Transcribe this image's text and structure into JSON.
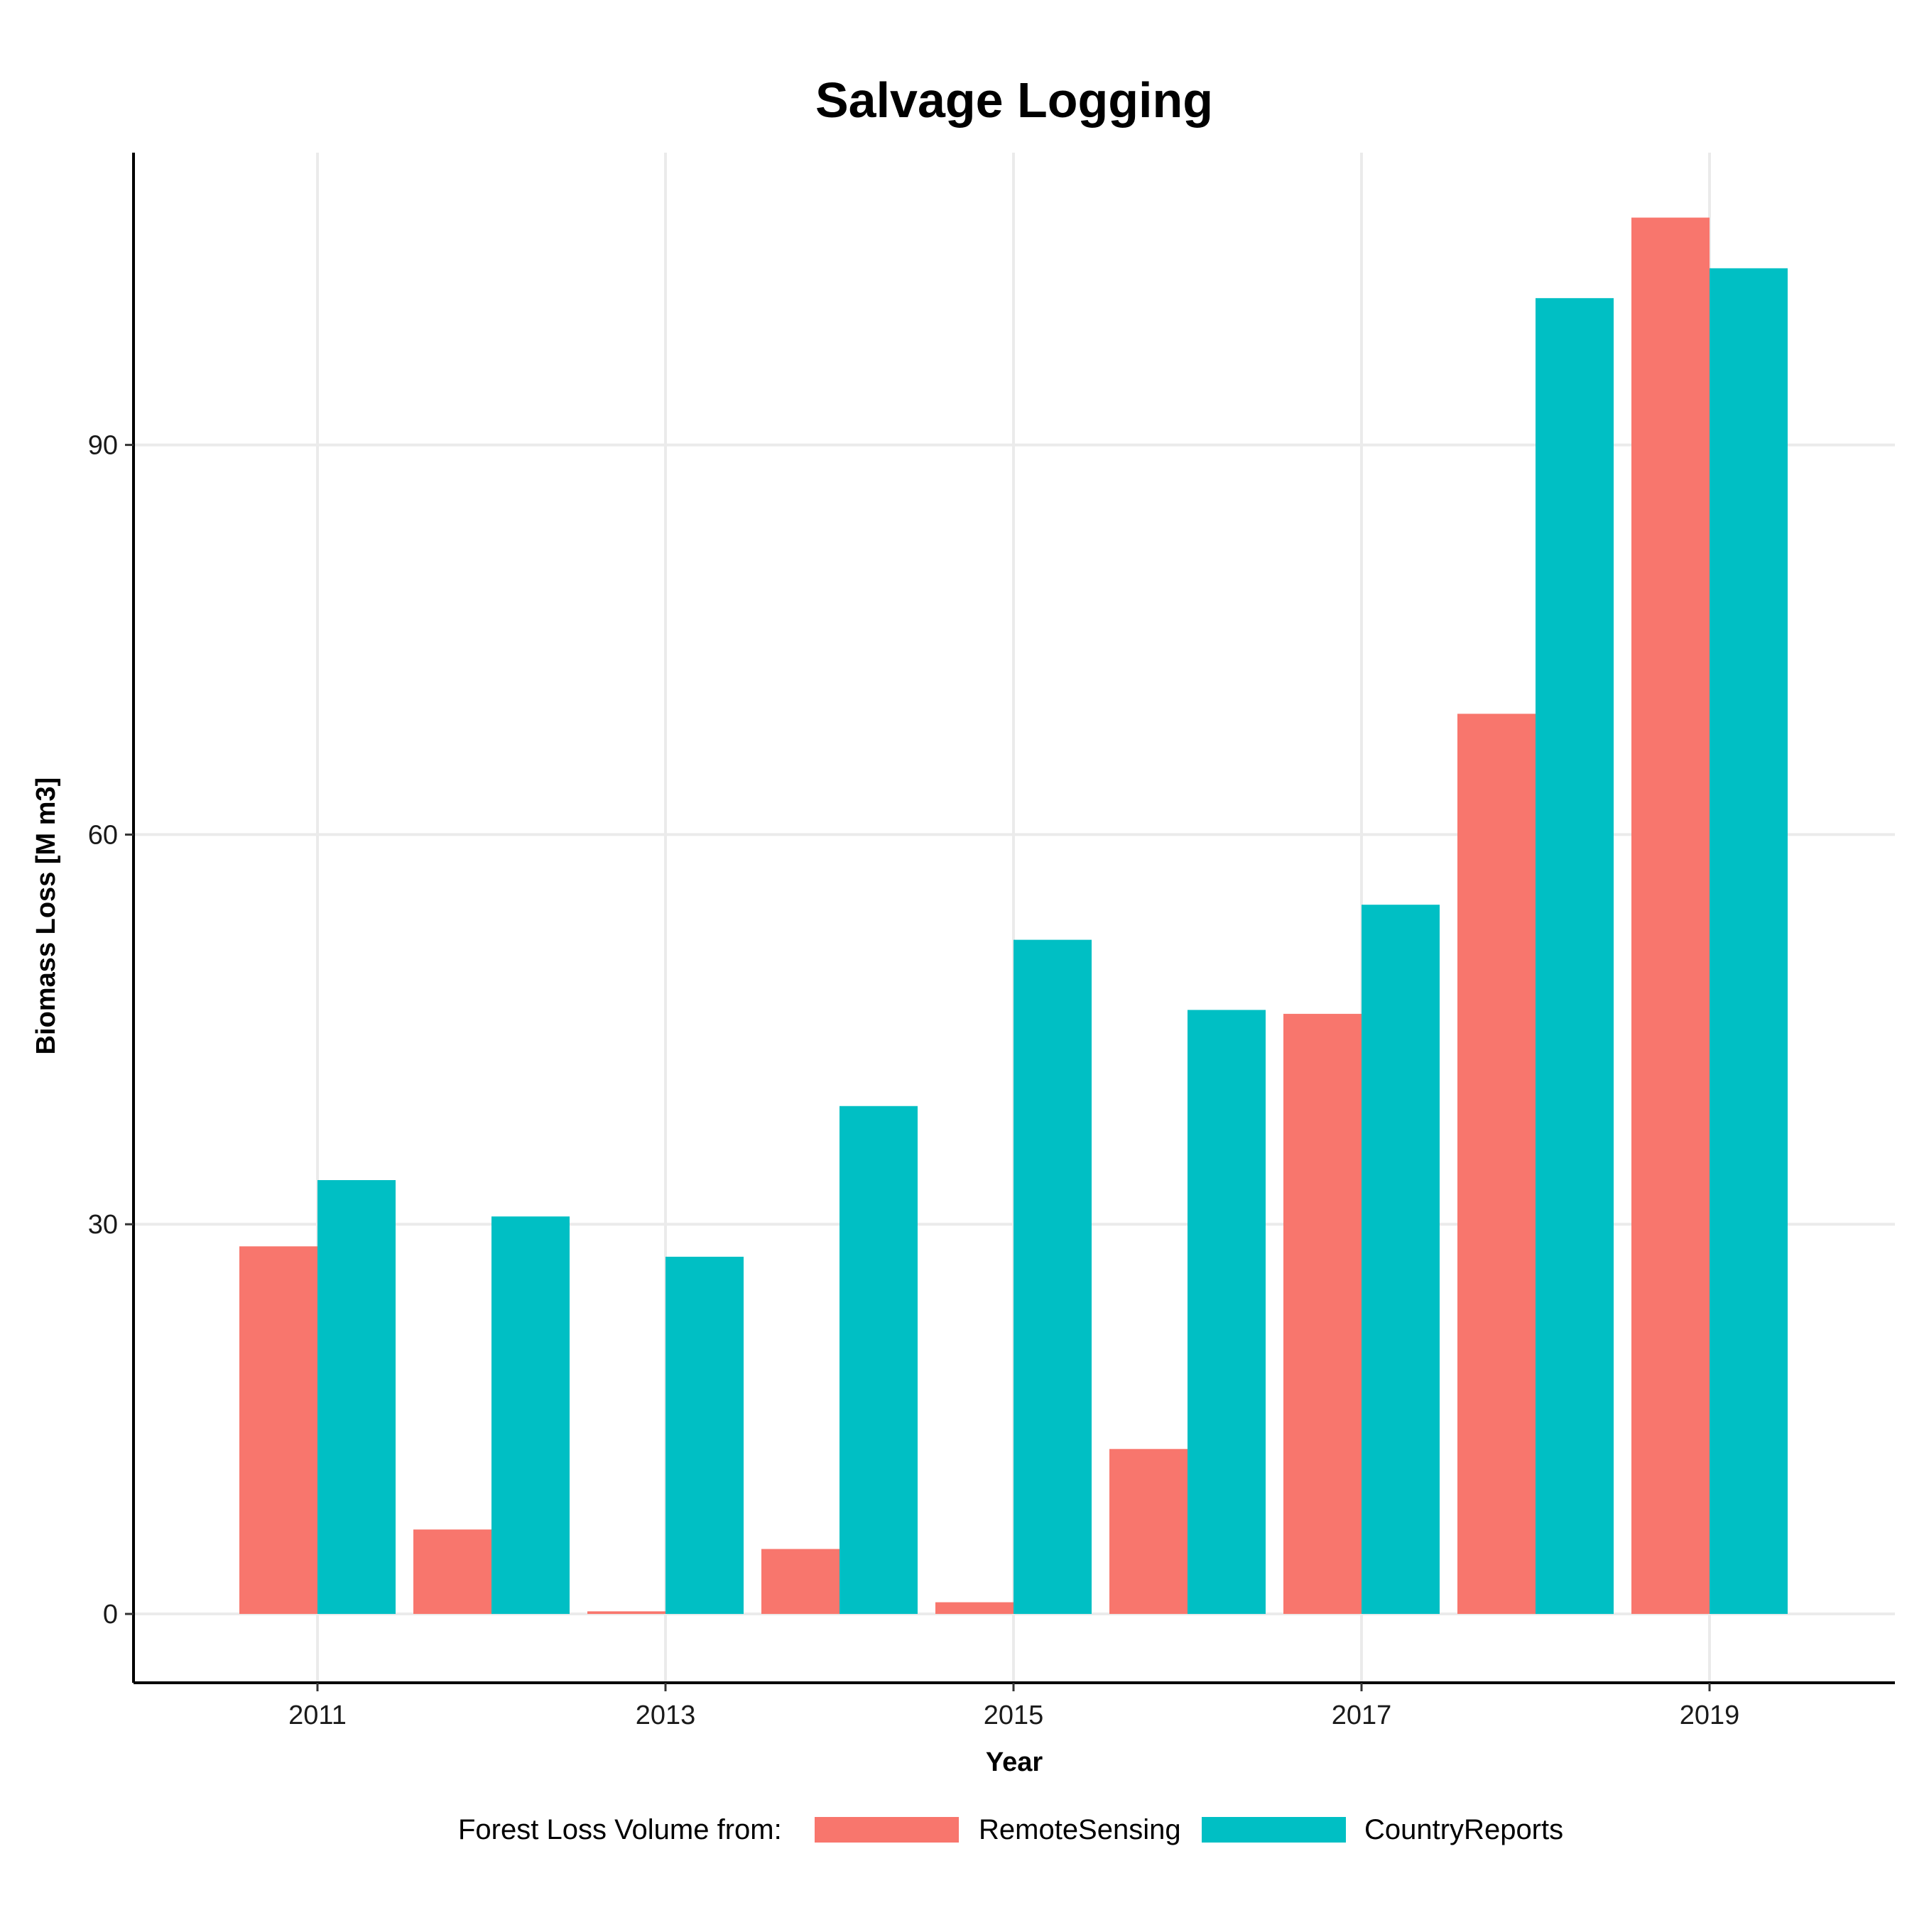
{
  "colors": {
    "RemoteSensing": "#F8766D",
    "CountryReports": "#00BFC4",
    "grid": "#EBEBEB",
    "axis": "#000000"
  },
  "chart_data": {
    "type": "bar",
    "title": "Salvage Logging",
    "xlabel": "Year",
    "ylabel": "Biomass Loss [M m3]",
    "categories": [
      "2011",
      "2012",
      "2013",
      "2014",
      "2015",
      "2016",
      "2017",
      "2018",
      "2019"
    ],
    "x_tick_labels": [
      "2011",
      "2013",
      "2015",
      "2017",
      "2019"
    ],
    "y_tick_labels": [
      "0",
      "30",
      "60",
      "90"
    ],
    "y_ticks": [
      0,
      30,
      60,
      90
    ],
    "ylim": [
      -5.3,
      112.5
    ],
    "grid": true,
    "legend_title": "Forest Loss Volume from:",
    "legend_position": "bottom",
    "series": [
      {
        "name": "RemoteSensing",
        "color": "#F8766D",
        "values": [
          28.3,
          6.5,
          0.2,
          5.0,
          0.9,
          12.7,
          46.2,
          69.3,
          107.5
        ]
      },
      {
        "name": "CountryReports",
        "color": "#00BFC4",
        "values": [
          33.4,
          30.6,
          27.5,
          39.1,
          51.9,
          46.5,
          54.6,
          101.3,
          103.6
        ]
      }
    ]
  }
}
